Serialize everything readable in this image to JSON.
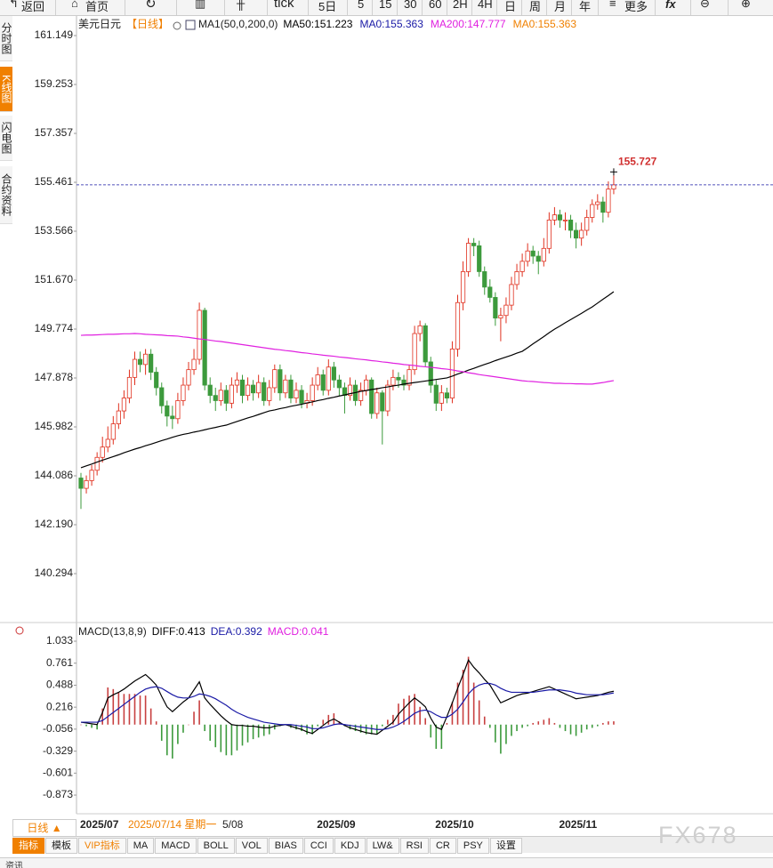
{
  "toolbar": [
    "返回",
    "首页",
    "tick",
    "5日",
    "5",
    "15",
    "30",
    "60",
    "2H",
    "4H",
    "日",
    "周",
    "月",
    "年",
    "更多"
  ],
  "sidebar": [
    "分时图",
    "K线图",
    "闪电图",
    "合约资料"
  ],
  "period_button": "日线 ▲",
  "tabs": [
    "指标",
    "模板",
    "VIP指标",
    "MA",
    "MACD",
    "BOLL",
    "VOL",
    "BIAS",
    "CCI",
    "KDJ",
    "LW&",
    "RSI",
    "CR",
    "PSY",
    "设置"
  ],
  "watermark": "FX678",
  "footer": "资讯",
  "chart_data": [
    {
      "type": "candlestick",
      "title": "美元日元",
      "period": "【日线】",
      "indicator": "MA1(50,0,200,0)",
      "up_color": "#e0301e",
      "down_color": "#3c9a3c",
      "crosshair_label": "2025/07/14 星期一",
      "x_label_partial": "5/08",
      "categories": [
        "2025/07",
        null,
        null,
        null,
        null,
        null,
        null,
        null,
        null,
        null,
        null,
        null,
        null,
        null,
        null,
        null,
        null,
        null,
        null,
        null,
        null,
        null,
        null,
        null,
        null,
        null,
        null,
        null,
        null,
        null,
        null,
        null,
        null,
        null,
        null,
        null,
        null,
        null,
        null,
        null,
        null,
        null,
        null,
        null,
        "2025/09",
        null,
        null,
        null,
        null,
        null,
        null,
        null,
        null,
        null,
        null,
        null,
        null,
        null,
        null,
        null,
        null,
        null,
        null,
        null,
        null,
        null,
        "2025/10",
        null,
        null,
        null,
        null,
        null,
        null,
        null,
        null,
        null,
        null,
        null,
        null,
        null,
        null,
        null,
        null,
        null,
        null,
        null,
        null,
        null,
        null,
        "2025/11",
        null,
        null,
        null,
        null,
        null,
        null,
        null,
        null,
        null,
        null
      ],
      "open": [
        144.0,
        143.6,
        143.9,
        144.3,
        144.8,
        145.2,
        145.5,
        146.1,
        146.6,
        147.1,
        147.9,
        148.6,
        148.4,
        148.8,
        148.1,
        147.5,
        146.8,
        146.4,
        146.3,
        147.0,
        147.6,
        148.2,
        148.6,
        150.5,
        147.6,
        147.2,
        147.0,
        147.4,
        146.9,
        147.6,
        147.8,
        147.2,
        147.6,
        147.3,
        147.7,
        147.0,
        147.5,
        148.2,
        147.3,
        147.8,
        147.1,
        147.4,
        146.9,
        147.0,
        147.6,
        148.0,
        147.4,
        148.3,
        147.8,
        147.5,
        147.2,
        147.6,
        147.0,
        147.4,
        147.8,
        146.5,
        147.3,
        146.6,
        147.6,
        147.9,
        147.8,
        147.6,
        148.2,
        149.6,
        149.9,
        148.5,
        147.6,
        146.9,
        147.3,
        147.1,
        149.0,
        150.8,
        152.0,
        153.1,
        153.0,
        152.0,
        151.4,
        151.0,
        150.2,
        150.3,
        150.7,
        151.5,
        152.0,
        152.4,
        152.8,
        152.6,
        152.4,
        152.9,
        154.0,
        154.2,
        154.0,
        154.0,
        153.6,
        153.3,
        153.6,
        154.1,
        154.6,
        154.7,
        154.3,
        155.2
      ],
      "high": [
        144.2,
        144.1,
        144.5,
        145.0,
        145.6,
        146.0,
        146.4,
        146.9,
        147.4,
        148.2,
        148.9,
        148.9,
        149.0,
        149.0,
        148.3,
        147.7,
        147.0,
        146.8,
        147.3,
        147.9,
        148.5,
        149.0,
        150.8,
        150.6,
        147.9,
        147.5,
        147.7,
        147.6,
        147.9,
        148.1,
        148.0,
        147.9,
        147.8,
        148.0,
        147.9,
        147.8,
        148.4,
        148.4,
        148.0,
        148.0,
        147.7,
        147.6,
        147.3,
        147.9,
        148.3,
        148.2,
        148.6,
        148.5,
        148.0,
        147.7,
        147.9,
        147.8,
        147.7,
        148.0,
        147.9,
        147.5,
        147.4,
        147.8,
        148.2,
        148.1,
        148.0,
        148.4,
        149.9,
        150.1,
        150.0,
        148.7,
        147.8,
        147.6,
        147.5,
        149.3,
        151.1,
        152.4,
        153.3,
        153.3,
        153.2,
        152.2,
        151.7,
        151.2,
        150.6,
        151.0,
        151.8,
        152.3,
        152.7,
        153.1,
        153.0,
        152.8,
        153.3,
        154.3,
        154.5,
        154.4,
        154.3,
        154.2,
        153.9,
        153.9,
        154.4,
        154.8,
        155.0,
        154.9,
        155.5,
        155.727
      ],
      "low": [
        142.8,
        143.4,
        143.7,
        144.1,
        144.6,
        145.0,
        145.3,
        145.9,
        146.3,
        146.9,
        147.6,
        148.1,
        148.0,
        147.8,
        147.2,
        146.5,
        146.0,
        145.9,
        146.1,
        146.8,
        147.4,
        148.0,
        148.4,
        147.4,
        146.9,
        146.6,
        146.8,
        146.6,
        146.7,
        147.3,
        146.9,
        147.0,
        147.0,
        147.1,
        146.8,
        146.8,
        147.3,
        147.0,
        147.1,
        146.9,
        146.9,
        146.7,
        146.7,
        146.8,
        147.4,
        147.2,
        147.2,
        147.5,
        147.2,
        146.5,
        147.0,
        146.8,
        146.8,
        147.2,
        146.3,
        146.3,
        145.3,
        146.4,
        147.4,
        147.5,
        147.4,
        147.4,
        148.0,
        149.3,
        148.3,
        147.3,
        146.6,
        146.6,
        146.9,
        146.9,
        148.7,
        150.5,
        151.8,
        152.6,
        151.8,
        151.1,
        150.8,
        149.9,
        149.3,
        150.0,
        150.5,
        151.3,
        151.8,
        152.2,
        152.3,
        151.9,
        152.2,
        152.7,
        153.8,
        153.7,
        153.6,
        153.3,
        152.9,
        153.0,
        153.4,
        153.9,
        154.4,
        153.9,
        154.1,
        155.0
      ],
      "close": [
        143.6,
        143.9,
        144.3,
        144.8,
        145.2,
        145.5,
        146.1,
        146.6,
        147.1,
        147.9,
        148.6,
        148.4,
        148.8,
        148.1,
        147.5,
        146.8,
        146.4,
        146.3,
        147.0,
        147.6,
        148.2,
        148.6,
        150.5,
        147.6,
        147.2,
        147.0,
        147.4,
        146.9,
        147.6,
        147.8,
        147.2,
        147.6,
        147.3,
        147.7,
        147.0,
        147.5,
        148.2,
        147.3,
        147.8,
        147.1,
        147.4,
        146.9,
        147.0,
        147.6,
        148.0,
        147.4,
        148.3,
        147.8,
        147.5,
        147.2,
        147.6,
        147.0,
        147.4,
        147.8,
        146.5,
        147.3,
        146.6,
        147.6,
        147.9,
        147.8,
        147.6,
        148.2,
        149.6,
        149.9,
        148.5,
        147.6,
        146.9,
        147.3,
        147.1,
        149.0,
        150.8,
        152.0,
        153.1,
        153.0,
        152.0,
        151.4,
        151.0,
        150.2,
        150.3,
        150.7,
        151.5,
        152.0,
        152.4,
        152.8,
        152.6,
        152.4,
        152.9,
        154.0,
        154.2,
        154.0,
        154.0,
        153.6,
        153.3,
        153.6,
        154.1,
        154.6,
        154.7,
        154.3,
        155.2,
        155.363
      ],
      "series": [
        {
          "name": "MA50:151.223",
          "color": "#000000",
          "values": [
            144.4,
            144.47,
            144.54,
            144.62,
            144.69,
            144.76,
            144.83,
            144.9,
            144.98,
            145.05,
            145.12,
            145.18,
            145.25,
            145.31,
            145.38,
            145.45,
            145.51,
            145.58,
            145.64,
            145.69,
            145.73,
            145.78,
            145.82,
            145.87,
            145.92,
            145.96,
            146.01,
            146.05,
            146.12,
            146.19,
            146.26,
            146.33,
            146.39,
            146.46,
            146.53,
            146.6,
            146.64,
            146.69,
            146.73,
            146.78,
            146.82,
            146.86,
            146.91,
            146.95,
            147.0,
            147.04,
            147.09,
            147.13,
            147.18,
            147.22,
            147.27,
            147.31,
            147.36,
            147.39,
            147.43,
            147.46,
            147.5,
            147.53,
            147.57,
            147.6,
            147.64,
            147.67,
            147.7,
            147.73,
            147.76,
            147.79,
            147.82,
            147.85,
            147.88,
            147.95,
            148.03,
            148.1,
            148.18,
            148.25,
            148.33,
            148.4,
            148.47,
            148.55,
            148.62,
            148.69,
            148.76,
            148.84,
            148.91,
            149.05,
            149.2,
            149.34,
            149.48,
            149.63,
            149.77,
            149.89,
            150.02,
            150.14,
            150.26,
            150.38,
            150.51,
            150.63,
            150.78,
            150.93,
            151.07,
            151.223
          ]
        },
        {
          "name": "MA200:147.777",
          "color": "#e020e0",
          "values": [
            149.53,
            149.54,
            149.54,
            149.55,
            149.56,
            149.57,
            149.57,
            149.58,
            149.59,
            149.59,
            149.6,
            149.59,
            149.57,
            149.56,
            149.55,
            149.54,
            149.52,
            149.51,
            149.5,
            149.47,
            149.45,
            149.42,
            149.39,
            149.37,
            149.34,
            149.31,
            149.29,
            149.26,
            149.23,
            149.2,
            149.17,
            149.14,
            149.11,
            149.08,
            149.05,
            149.02,
            148.99,
            148.97,
            148.94,
            148.92,
            148.89,
            148.86,
            148.84,
            148.81,
            148.79,
            148.76,
            148.74,
            148.72,
            148.69,
            148.67,
            148.65,
            148.62,
            148.6,
            148.58,
            148.55,
            148.53,
            148.5,
            148.48,
            148.45,
            148.43,
            148.4,
            148.38,
            148.36,
            148.33,
            148.31,
            148.29,
            148.27,
            148.24,
            148.22,
            148.19,
            148.15,
            148.12,
            148.08,
            148.05,
            148.01,
            147.98,
            147.95,
            147.92,
            147.89,
            147.86,
            147.83,
            147.8,
            147.77,
            147.75,
            147.74,
            147.72,
            147.7,
            147.69,
            147.67,
            147.67,
            147.66,
            147.66,
            147.65,
            147.65,
            147.64,
            147.64,
            147.67,
            147.7,
            147.74,
            147.777
          ]
        }
      ],
      "price_lines": [
        {
          "name": "MA0:155.363",
          "color": "#1a1aa6"
        },
        {
          "name": "MA0:155.363",
          "color": "#f08000"
        }
      ],
      "ylim": [
        138.398,
        161.494
      ],
      "yticks": [
        161.149,
        159.253,
        157.357,
        155.461,
        153.566,
        {
          "value": 151.67,
          "label": "151.670"
        },
        149.774,
        147.878,
        145.982,
        144.086,
        {
          "value": 142.19,
          "label": "142.190"
        },
        140.294
      ]
    },
    {
      "type": "macd",
      "title": "MACD(13,8,9)",
      "diff_label": "DIFF:0.413",
      "dea_label": "DEA:0.392",
      "macd_label": "MACD:0.041",
      "ylim": [
        -1.104,
        1.132
      ],
      "yticks": [
        1.033,
        0.761,
        0.488,
        0.216,
        -0.056,
        -0.329,
        -0.601,
        -0.873
      ],
      "series": [
        {
          "name": "DIFF",
          "color": "#000000",
          "values": [
            0.03,
            0.02,
            0.01,
            0.0,
            0.15,
            0.33,
            0.37,
            0.4,
            0.44,
            0.49,
            0.54,
            0.58,
            0.62,
            0.56,
            0.49,
            0.35,
            0.22,
            0.16,
            0.22,
            0.28,
            0.33,
            0.43,
            0.53,
            0.33,
            0.25,
            0.18,
            0.11,
            0.05,
            0.0,
            -0.01,
            -0.01,
            -0.02,
            -0.02,
            -0.03,
            -0.04,
            -0.04,
            -0.02,
            -0.01,
            0.0,
            -0.02,
            -0.04,
            -0.06,
            -0.09,
            -0.11,
            -0.06,
            -0.01,
            0.04,
            0.07,
            0.03,
            -0.01,
            -0.04,
            -0.06,
            -0.08,
            -0.1,
            -0.11,
            -0.12,
            -0.07,
            -0.02,
            0.03,
            0.13,
            0.2,
            0.27,
            0.33,
            0.28,
            0.22,
            0.08,
            -0.03,
            -0.06,
            0.1,
            0.27,
            0.45,
            0.62,
            0.8,
            0.71,
            0.64,
            0.56,
            0.49,
            0.38,
            0.27,
            0.3,
            0.33,
            0.36,
            0.38,
            0.39,
            0.41,
            0.43,
            0.45,
            0.47,
            0.44,
            0.41,
            0.38,
            0.35,
            0.32,
            0.33,
            0.34,
            0.35,
            0.36,
            0.38,
            0.4,
            0.413
          ]
        },
        {
          "name": "DEA",
          "color": "#1a1aa6",
          "values": [
            0.03,
            0.03,
            0.03,
            0.03,
            0.05,
            0.1,
            0.15,
            0.2,
            0.25,
            0.3,
            0.35,
            0.4,
            0.44,
            0.46,
            0.47,
            0.45,
            0.41,
            0.37,
            0.34,
            0.33,
            0.33,
            0.35,
            0.38,
            0.37,
            0.35,
            0.32,
            0.28,
            0.24,
            0.19,
            0.15,
            0.12,
            0.09,
            0.07,
            0.05,
            0.03,
            0.02,
            0.01,
            0.0,
            0.0,
            0.0,
            -0.01,
            -0.02,
            -0.03,
            -0.05,
            -0.05,
            -0.04,
            -0.02,
            0.0,
            0.01,
            0.0,
            -0.01,
            -0.02,
            -0.03,
            -0.04,
            -0.05,
            -0.06,
            -0.06,
            -0.05,
            -0.03,
            0.0,
            0.04,
            0.09,
            0.14,
            0.17,
            0.18,
            0.16,
            0.12,
            0.09,
            0.09,
            0.13,
            0.19,
            0.28,
            0.38,
            0.45,
            0.49,
            0.51,
            0.51,
            0.49,
            0.45,
            0.42,
            0.4,
            0.4,
            0.4,
            0.4,
            0.4,
            0.41,
            0.42,
            0.43,
            0.43,
            0.43,
            0.42,
            0.41,
            0.39,
            0.38,
            0.37,
            0.37,
            0.37,
            0.37,
            0.38,
            0.392
          ]
        }
      ],
      "hist": {
        "up_color": "#c84040",
        "down_color": "#3c9a3c",
        "values": [
          0.0,
          -0.02,
          -0.04,
          -0.06,
          0.2,
          0.46,
          0.44,
          0.4,
          0.38,
          0.38,
          0.38,
          0.36,
          0.36,
          0.2,
          0.04,
          -0.2,
          -0.38,
          -0.42,
          -0.24,
          -0.1,
          0.0,
          0.16,
          0.3,
          -0.08,
          -0.2,
          -0.28,
          -0.34,
          -0.38,
          -0.38,
          -0.32,
          -0.26,
          -0.22,
          -0.18,
          -0.16,
          -0.14,
          -0.12,
          -0.06,
          -0.02,
          0.0,
          -0.04,
          -0.06,
          -0.08,
          -0.12,
          -0.12,
          -0.02,
          0.06,
          0.12,
          0.14,
          0.04,
          -0.02,
          -0.06,
          -0.08,
          -0.1,
          -0.12,
          -0.12,
          -0.12,
          -0.02,
          0.06,
          0.12,
          0.26,
          0.32,
          0.36,
          0.38,
          0.22,
          0.08,
          -0.16,
          -0.3,
          -0.3,
          0.02,
          0.28,
          0.52,
          0.68,
          0.84,
          0.52,
          0.3,
          0.1,
          -0.04,
          -0.22,
          -0.36,
          -0.24,
          -0.14,
          -0.08,
          -0.04,
          -0.02,
          0.02,
          0.04,
          0.06,
          0.08,
          0.02,
          -0.04,
          -0.08,
          -0.12,
          -0.14,
          -0.1,
          -0.06,
          -0.04,
          -0.02,
          0.02,
          0.04,
          0.041
        ]
      }
    }
  ]
}
